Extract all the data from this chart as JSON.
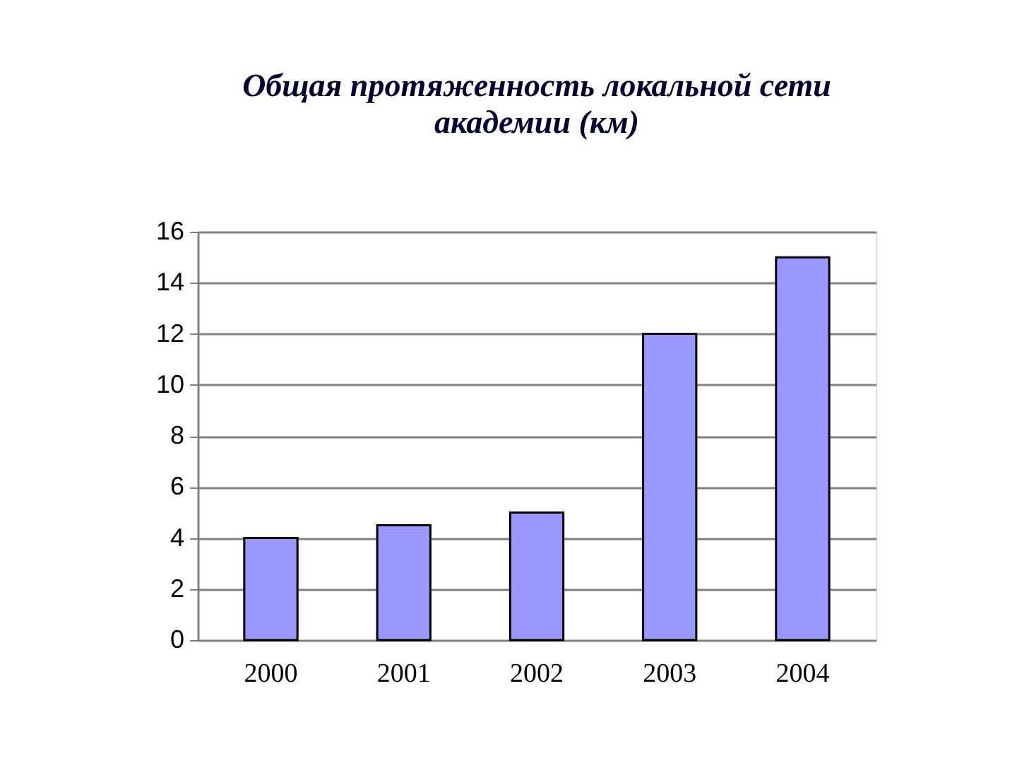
{
  "chart_data": {
    "type": "bar",
    "title": "Общая протяженность локальной сети академии (км)",
    "categories": [
      "2000",
      "2001",
      "2002",
      "2003",
      "2004"
    ],
    "values": [
      4.0,
      4.5,
      5.0,
      12.0,
      15.0
    ],
    "color": "#9999ff",
    "ylim": [
      0,
      16
    ],
    "yticks": [
      0,
      2,
      4,
      6,
      8,
      10,
      12,
      14,
      16
    ],
    "grid": true
  }
}
